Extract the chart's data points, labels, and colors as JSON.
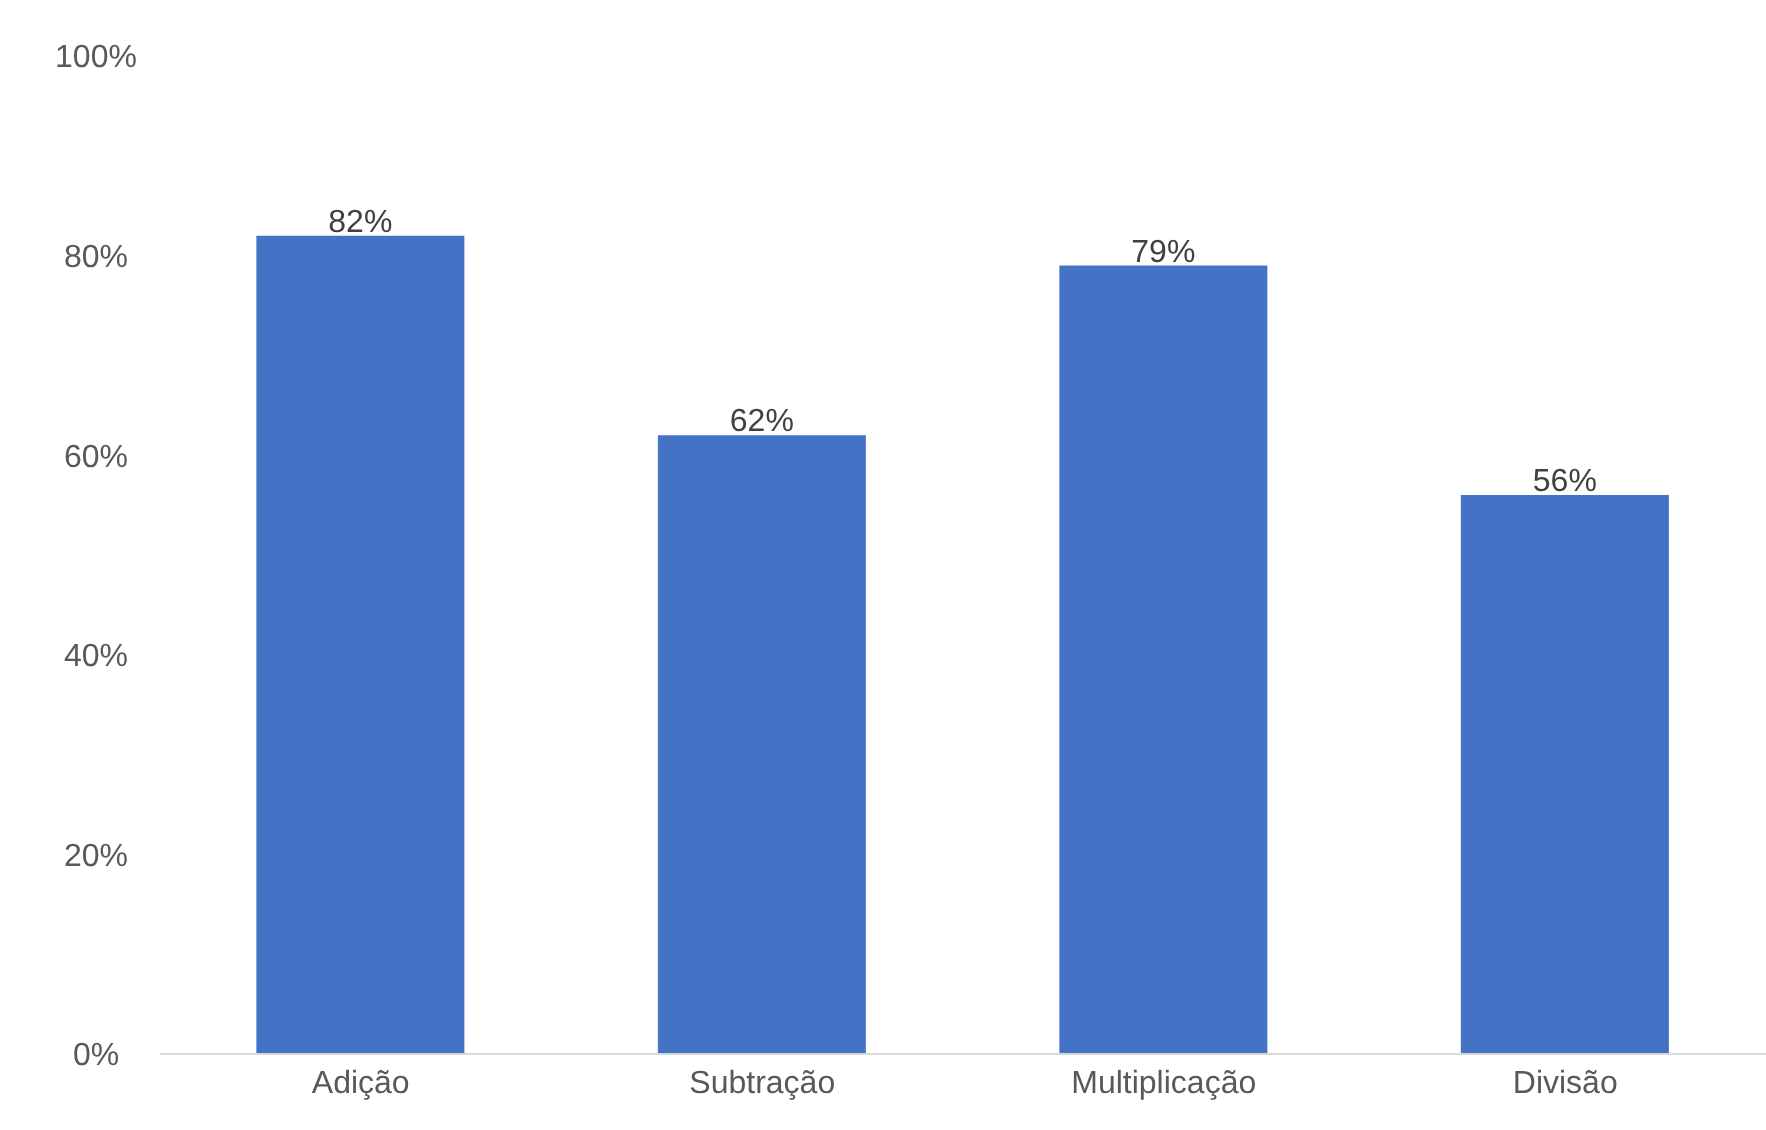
{
  "chart_data": {
    "type": "bar",
    "categories": [
      "Adição",
      "Subtração",
      "Multiplicação",
      "Divisão"
    ],
    "values": [
      82,
      62,
      79,
      56
    ],
    "color": "#4472c4",
    "value_labels": [
      "82%",
      "62%",
      "79%",
      "56%"
    ],
    "ylim": [
      0,
      100
    ],
    "yticks": [
      {
        "value": 0,
        "label": "0%"
      },
      {
        "value": 20,
        "label": "20%"
      },
      {
        "value": 40,
        "label": "40%"
      },
      {
        "value": 60,
        "label": "60%"
      },
      {
        "value": 80,
        "label": "80%"
      },
      {
        "value": 100,
        "label": "100%"
      }
    ],
    "grid": false
  }
}
